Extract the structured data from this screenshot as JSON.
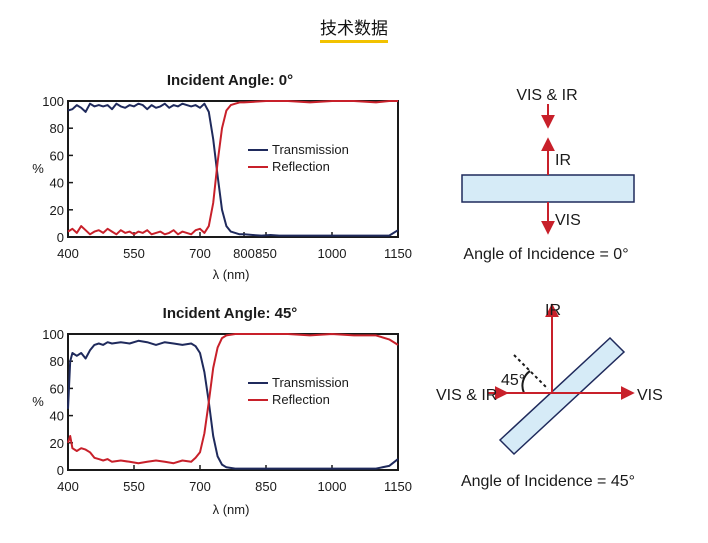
{
  "page_title": "技术数据",
  "colors": {
    "transmission": "#1f2a5c",
    "reflection": "#c8202a",
    "arrow": "#c8202a",
    "glass_fill": "#d6ebf7",
    "glass_stroke": "#1f2a5c"
  },
  "chart_data": [
    {
      "type": "line",
      "title": "Incident Angle: 0°",
      "xlabel": "λ (nm)",
      "ylabel": "%",
      "xlim": [
        400,
        1150
      ],
      "ylim": [
        0,
        100
      ],
      "xticks": [
        400,
        550,
        700,
        800,
        850,
        1000,
        1150
      ],
      "yticks": [
        0,
        20,
        40,
        60,
        80,
        100
      ],
      "grid": false,
      "legend": "center-right",
      "series": [
        {
          "name": "Transmission",
          "x": [
            400,
            410,
            420,
            430,
            440,
            450,
            460,
            470,
            480,
            490,
            500,
            510,
            520,
            530,
            540,
            550,
            560,
            570,
            580,
            590,
            600,
            610,
            620,
            630,
            640,
            650,
            660,
            670,
            680,
            690,
            700,
            710,
            720,
            730,
            740,
            750,
            760,
            770,
            780,
            790,
            800,
            820,
            840,
            860,
            880,
            900,
            950,
            1000,
            1050,
            1100,
            1130,
            1150
          ],
          "y": [
            93,
            94,
            97,
            95,
            92,
            98,
            96,
            97,
            96,
            97,
            94,
            98,
            96,
            95,
            97,
            96,
            98,
            97,
            94,
            97,
            95,
            96,
            98,
            95,
            97,
            96,
            98,
            97,
            96,
            97,
            95,
            98,
            92,
            72,
            45,
            20,
            8,
            4,
            3,
            2,
            2,
            1.5,
            1,
            1.5,
            1,
            1,
            1,
            1,
            1,
            1,
            1,
            5
          ]
        },
        {
          "name": "Reflection",
          "x": [
            400,
            410,
            420,
            430,
            440,
            450,
            460,
            470,
            480,
            490,
            500,
            510,
            520,
            530,
            540,
            550,
            560,
            570,
            580,
            590,
            600,
            610,
            620,
            630,
            640,
            650,
            660,
            670,
            680,
            690,
            700,
            710,
            720,
            730,
            740,
            750,
            760,
            770,
            780,
            790,
            800,
            850,
            900,
            950,
            1000,
            1050,
            1100,
            1130,
            1150
          ],
          "y": [
            4,
            6,
            3,
            8,
            5,
            2,
            4,
            5,
            3,
            6,
            4,
            2,
            5,
            3,
            4,
            2,
            4,
            3,
            5,
            2,
            3,
            4,
            2,
            3,
            5,
            2,
            4,
            3,
            2,
            5,
            6,
            3,
            8,
            25,
            55,
            80,
            93,
            97,
            98,
            99,
            99,
            100,
            100,
            99,
            100,
            100,
            99,
            100,
            100
          ]
        }
      ]
    },
    {
      "type": "line",
      "title": "Incident Angle: 45°",
      "xlabel": "λ (nm)",
      "ylabel": "%",
      "xlim": [
        400,
        1150
      ],
      "ylim": [
        0,
        100
      ],
      "xticks": [
        400,
        550,
        700,
        850,
        1000,
        1150
      ],
      "yticks": [
        0,
        20,
        40,
        60,
        80,
        100
      ],
      "grid": false,
      "legend": "center-right",
      "series": [
        {
          "name": "Transmission",
          "x": [
            400,
            405,
            410,
            420,
            430,
            440,
            450,
            460,
            470,
            480,
            490,
            500,
            520,
            540,
            560,
            580,
            600,
            620,
            640,
            660,
            680,
            690,
            700,
            710,
            720,
            730,
            740,
            750,
            760,
            780,
            800,
            850,
            900,
            950,
            1000,
            1050,
            1100,
            1130,
            1150
          ],
          "y": [
            45,
            80,
            86,
            84,
            86,
            82,
            88,
            92,
            93,
            92,
            94,
            93,
            94,
            93,
            95,
            94,
            92,
            94,
            93,
            92,
            93,
            91,
            86,
            72,
            50,
            25,
            10,
            4,
            2,
            1,
            1,
            1,
            1,
            1,
            1,
            1,
            1,
            3,
            8
          ]
        },
        {
          "name": "Reflection",
          "x": [
            400,
            405,
            410,
            420,
            430,
            440,
            450,
            460,
            470,
            480,
            490,
            500,
            520,
            540,
            560,
            580,
            600,
            620,
            640,
            660,
            680,
            690,
            700,
            710,
            720,
            730,
            740,
            750,
            760,
            780,
            800,
            850,
            900,
            950,
            1000,
            1050,
            1100,
            1130,
            1150
          ],
          "y": [
            20,
            25,
            16,
            14,
            16,
            15,
            13,
            9,
            8,
            7,
            8,
            6,
            7,
            6,
            5,
            6,
            7,
            6,
            5,
            7,
            6,
            9,
            13,
            27,
            50,
            75,
            90,
            97,
            99,
            100,
            100,
            100,
            100,
            99,
            100,
            99,
            99,
            96,
            92
          ]
        }
      ]
    }
  ],
  "diagrams": {
    "normal": {
      "top_label": "VIS & IR",
      "reflect_label": "IR",
      "transmit_label": "VIS",
      "caption": "Angle of Incidence = 0°"
    },
    "oblique": {
      "angle_label": "45°",
      "reflect_label": "IR",
      "input_label": "VIS & IR",
      "transmit_label": "VIS",
      "caption": "Angle of Incidence = 45°"
    }
  }
}
